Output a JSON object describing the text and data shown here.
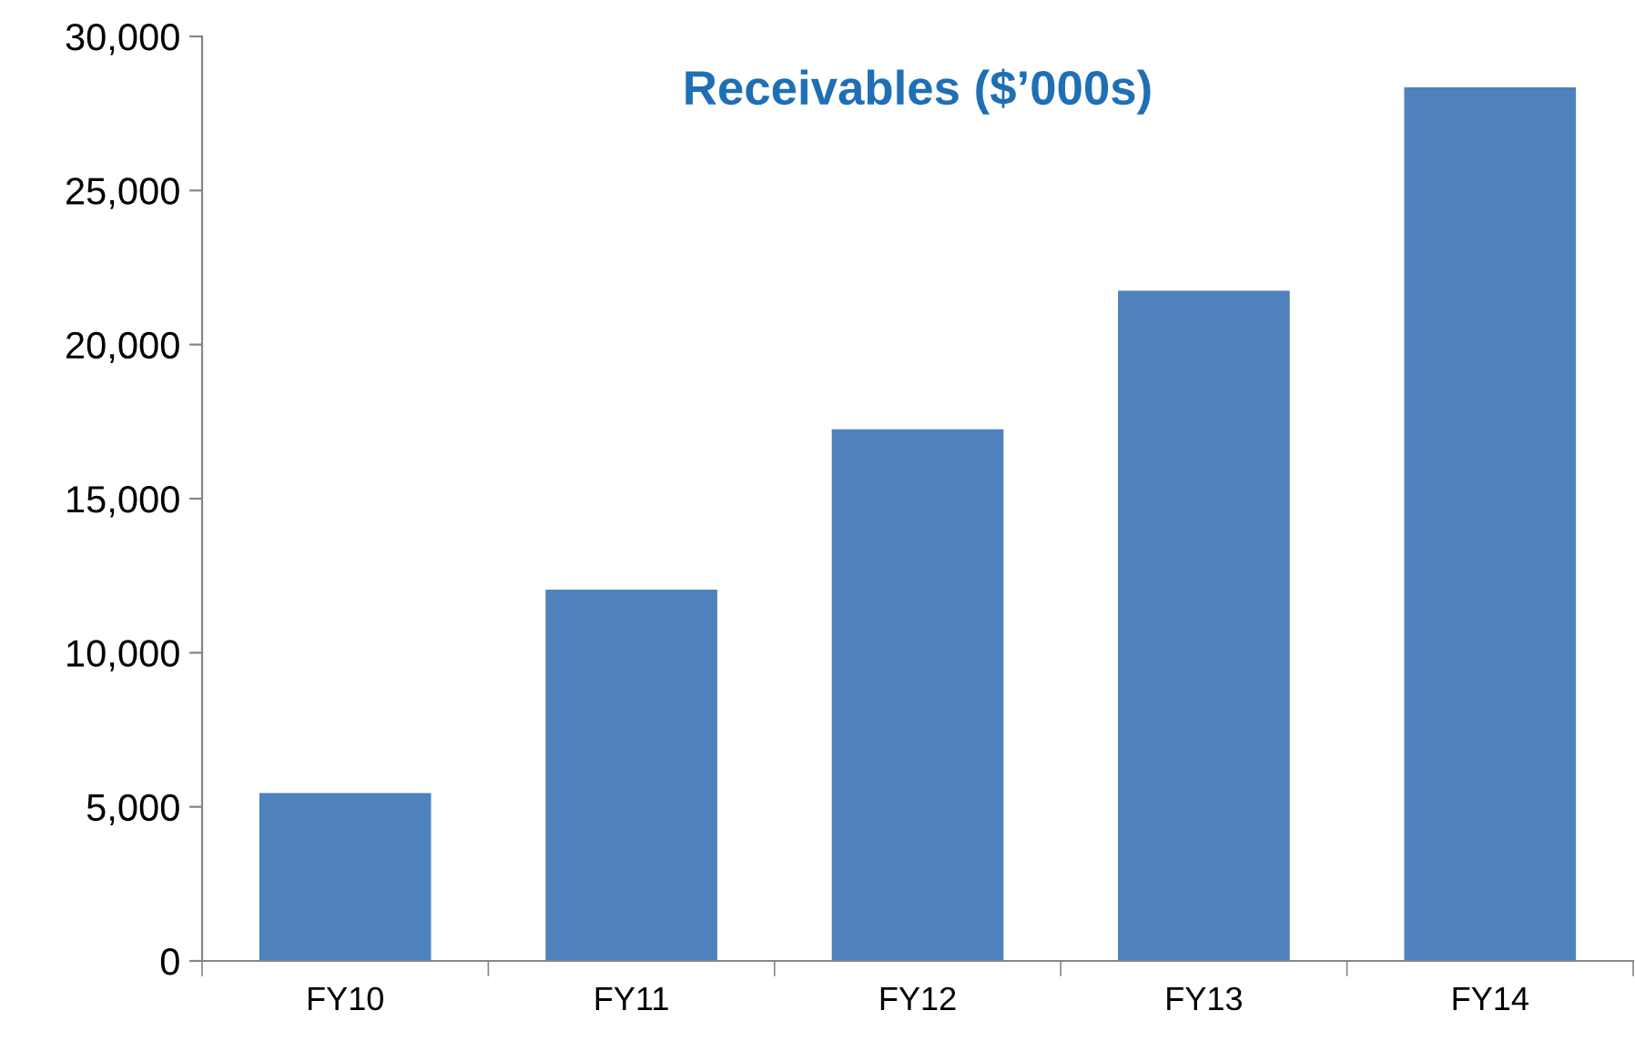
{
  "chart_data": {
    "type": "bar",
    "title": "Receivables ($’000s)",
    "categories": [
      "FY10",
      "FY11",
      "FY12",
      "FY13",
      "FY14"
    ],
    "values": [
      5450,
      12050,
      17250,
      21750,
      28350
    ],
    "color": "#4f81bd",
    "ylim": [
      0,
      30000
    ],
    "yticks": [
      {
        "value": 0,
        "label": "0"
      },
      {
        "value": 5000,
        "label": "5,000"
      },
      {
        "value": 10000,
        "label": "10,000"
      },
      {
        "value": 15000,
        "label": "15,000"
      },
      {
        "value": 20000,
        "label": "20,000"
      },
      {
        "value": 25000,
        "label": "25,000"
      },
      {
        "value": 30000,
        "label": "30,000"
      }
    ],
    "grid": false,
    "legend": false
  }
}
